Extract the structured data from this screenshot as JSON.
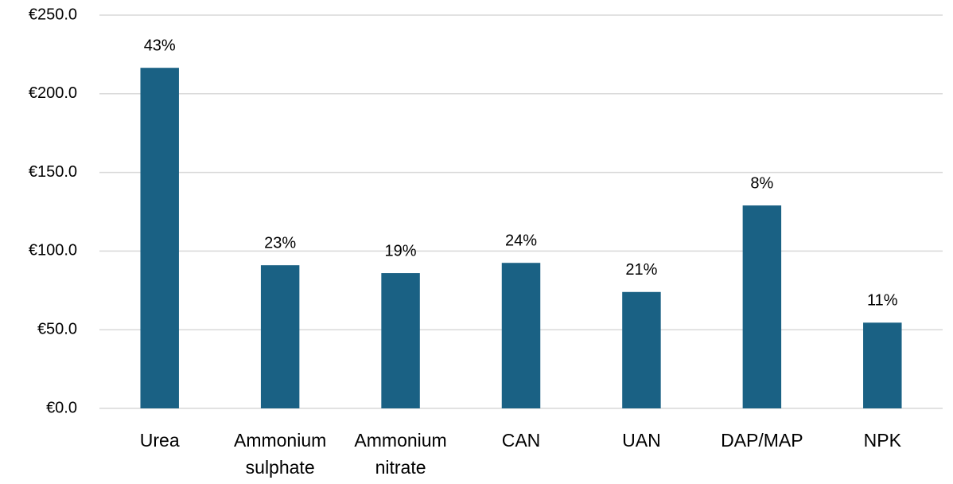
{
  "chart_data": {
    "type": "bar",
    "categories": [
      "Urea",
      "Ammonium sulphate",
      "Ammonium nitrate",
      "CAN",
      "UAN",
      "DAP/MAP",
      "NPK"
    ],
    "values": [
      216.5,
      91,
      86,
      92.5,
      74,
      129,
      54.5
    ],
    "bar_labels": [
      "43%",
      "23%",
      "19%",
      "24%",
      "21%",
      "8%",
      "11%"
    ],
    "color": "#1a6184",
    "ylim": [
      0,
      250
    ],
    "yticks": [
      {
        "value": 0,
        "label": "€0.0"
      },
      {
        "value": 50,
        "label": "€50.0"
      },
      {
        "value": 100,
        "label": "€100.0"
      },
      {
        "value": 150,
        "label": "€150.0"
      },
      {
        "value": 200,
        "label": "€200.0"
      },
      {
        "value": 250,
        "label": "€250.0"
      }
    ],
    "grid": true
  }
}
